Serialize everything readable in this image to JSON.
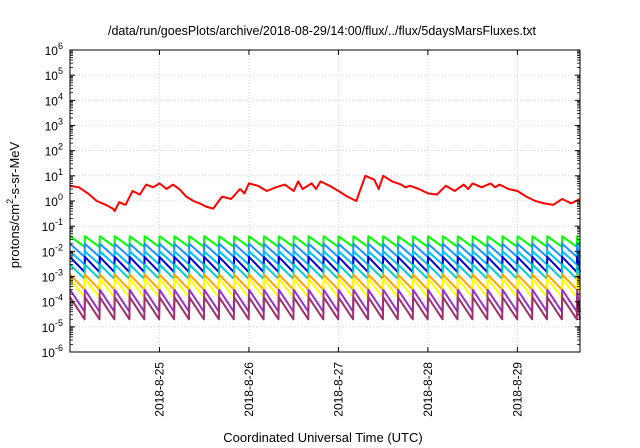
{
  "chart_data": {
    "type": "line",
    "title": "/data/run/goesPlots/archive/2018-08-29/14:00/flux/../flux/5daysMarsFluxes.txt",
    "xlabel": "Coordinated Universal Time (UTC)",
    "ylabel_parts": [
      "protons/cm",
      "2",
      "-s-sr-MeV"
    ],
    "y_scale": "log",
    "ylim": [
      1e-06,
      1000000.0
    ],
    "y_ticks": [
      {
        "mant": "10",
        "exp": "-6"
      },
      {
        "mant": "10",
        "exp": "-5"
      },
      {
        "mant": "10",
        "exp": "-4"
      },
      {
        "mant": "10",
        "exp": "-3"
      },
      {
        "mant": "10",
        "exp": "-2"
      },
      {
        "mant": "10",
        "exp": "-1"
      },
      {
        "mant": "10",
        "exp": "0"
      },
      {
        "mant": "10",
        "exp": "1"
      },
      {
        "mant": "10",
        "exp": "2"
      },
      {
        "mant": "10",
        "exp": "3"
      },
      {
        "mant": "10",
        "exp": "4"
      },
      {
        "mant": "10",
        "exp": "5"
      },
      {
        "mant": "10",
        "exp": "6"
      }
    ],
    "xlim": [
      0,
      5.7
    ],
    "x_ticks": [
      {
        "value": 1.0,
        "label": "2018-8-25"
      },
      {
        "value": 2.0,
        "label": "2018-8-26"
      },
      {
        "value": 3.0,
        "label": "2018-8-27"
      },
      {
        "value": 4.0,
        "label": "2018-8-28"
      },
      {
        "value": 5.0,
        "label": "2018-8-29"
      }
    ],
    "grid": true,
    "sawtooth_period": 0.1667,
    "series": [
      {
        "color": "#ff0000",
        "x": [
          0.0,
          0.1,
          0.2,
          0.3,
          0.4,
          0.48,
          0.5,
          0.55,
          0.62,
          0.7,
          0.78,
          0.85,
          0.93,
          1.0,
          1.08,
          1.15,
          1.22,
          1.3,
          1.38,
          1.45,
          1.52,
          1.6,
          1.7,
          1.8,
          1.9,
          1.95,
          2.0,
          2.1,
          2.2,
          2.3,
          2.4,
          2.5,
          2.55,
          2.6,
          2.7,
          2.75,
          2.8,
          2.9,
          3.0,
          3.1,
          3.2,
          3.3,
          3.4,
          3.45,
          3.5,
          3.6,
          3.7,
          3.75,
          3.8,
          3.9,
          4.0,
          4.1,
          4.2,
          4.3,
          4.4,
          4.45,
          4.5,
          4.6,
          4.7,
          4.75,
          4.8,
          4.9,
          5.0,
          5.1,
          5.2,
          5.3,
          5.4,
          5.5,
          5.6,
          5.7
        ],
        "y": [
          4.0,
          3.5,
          2.0,
          1.0,
          0.7,
          0.5,
          0.4,
          0.9,
          0.7,
          2.5,
          1.8,
          4.5,
          3.5,
          5.0,
          3.0,
          4.5,
          3.0,
          1.5,
          1.0,
          0.8,
          0.6,
          0.5,
          1.5,
          1.2,
          3.0,
          2.0,
          5.0,
          4.0,
          2.5,
          3.5,
          4.5,
          2.5,
          6.0,
          3.0,
          5.0,
          3.0,
          6.0,
          4.0,
          2.5,
          1.5,
          1.0,
          10.0,
          7.0,
          3.0,
          10.0,
          6.0,
          4.5,
          3.5,
          4.0,
          3.0,
          2.0,
          1.8,
          4.0,
          2.5,
          4.5,
          3.0,
          5.0,
          3.5,
          5.0,
          3.5,
          4.5,
          3.0,
          2.5,
          1.5,
          1.0,
          0.8,
          0.7,
          1.2,
          0.8,
          1.2
        ]
      },
      {
        "color": "#00ff00",
        "min": 0.015,
        "max": 0.04
      },
      {
        "color": "#1e90ff",
        "min": 0.006,
        "max": 0.02
      },
      {
        "color": "#00bfff",
        "min": 0.003,
        "max": 0.01
      },
      {
        "color": "#0000cd",
        "min": 0.0015,
        "max": 0.006
      },
      {
        "color": "#00ced1",
        "min": 0.0008,
        "max": 0.003
      },
      {
        "color": "#ffa500",
        "min": 0.0003,
        "max": 0.0012
      },
      {
        "color": "#ffff00",
        "min": 0.00015,
        "max": 0.0008
      },
      {
        "color": "#9932cc",
        "min": 4e-05,
        "max": 0.0003
      },
      {
        "color": "#a0306a",
        "min": 2e-05,
        "max": 0.00015
      }
    ]
  }
}
